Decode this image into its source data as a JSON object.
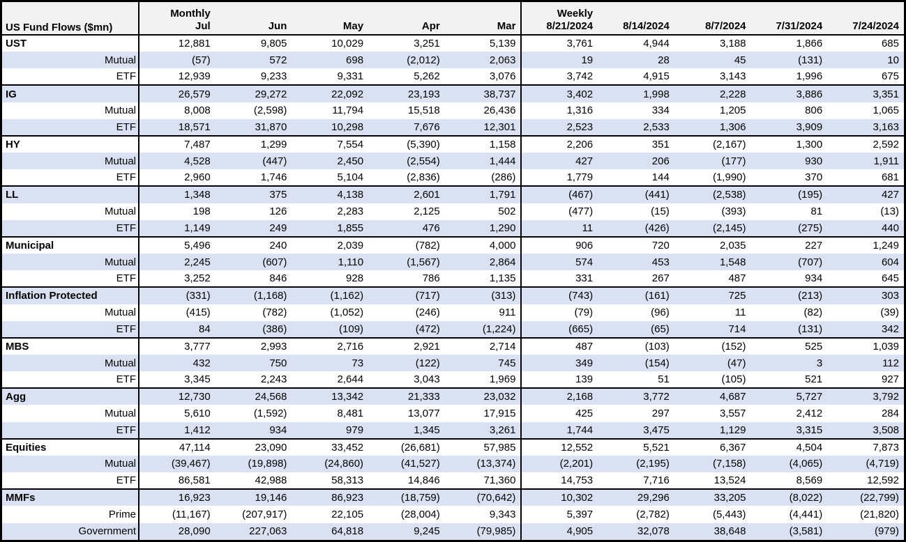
{
  "colors": {
    "stripe": "#d9e1f2",
    "header_bg": "#f2f2f2",
    "border": "#000000",
    "text": "#000000"
  },
  "chart_data": {
    "type": "table",
    "title": "US Fund Flows ($mn)",
    "column_groups": [
      {
        "label": "Monthly",
        "columns": [
          "Jul",
          "Jun",
          "May",
          "Apr",
          "Mar"
        ]
      },
      {
        "label": "Weekly",
        "columns": [
          "8/21/2024",
          "8/14/2024",
          "8/7/2024",
          "7/31/2024",
          "7/24/2024"
        ]
      }
    ],
    "groups": [
      {
        "name": "UST",
        "rows": [
          {
            "label": "UST",
            "monthly": [
              "12,881",
              "9,805",
              "10,029",
              "3,251",
              "5,139"
            ],
            "weekly": [
              "3,761",
              "4,944",
              "3,188",
              "1,866",
              "685"
            ]
          },
          {
            "label": "Mutual",
            "monthly": [
              "(57)",
              "572",
              "698",
              "(2,012)",
              "2,063"
            ],
            "weekly": [
              "19",
              "28",
              "45",
              "(131)",
              "10"
            ]
          },
          {
            "label": "ETF",
            "monthly": [
              "12,939",
              "9,233",
              "9,331",
              "5,262",
              "3,076"
            ],
            "weekly": [
              "3,742",
              "4,915",
              "3,143",
              "1,996",
              "675"
            ]
          }
        ]
      },
      {
        "name": "IG",
        "rows": [
          {
            "label": "IG",
            "monthly": [
              "26,579",
              "29,272",
              "22,092",
              "23,193",
              "38,737"
            ],
            "weekly": [
              "3,402",
              "1,998",
              "2,228",
              "3,886",
              "3,351"
            ]
          },
          {
            "label": "Mutual",
            "monthly": [
              "8,008",
              "(2,598)",
              "11,794",
              "15,518",
              "26,436"
            ],
            "weekly": [
              "1,316",
              "334",
              "1,205",
              "806",
              "1,065"
            ]
          },
          {
            "label": "ETF",
            "monthly": [
              "18,571",
              "31,870",
              "10,298",
              "7,676",
              "12,301"
            ],
            "weekly": [
              "2,523",
              "2,533",
              "1,306",
              "3,909",
              "3,163"
            ]
          }
        ]
      },
      {
        "name": "HY",
        "rows": [
          {
            "label": "HY",
            "monthly": [
              "7,487",
              "1,299",
              "7,554",
              "(5,390)",
              "1,158"
            ],
            "weekly": [
              "2,206",
              "351",
              "(2,167)",
              "1,300",
              "2,592"
            ]
          },
          {
            "label": "Mutual",
            "monthly": [
              "4,528",
              "(447)",
              "2,450",
              "(2,554)",
              "1,444"
            ],
            "weekly": [
              "427",
              "206",
              "(177)",
              "930",
              "1,911"
            ]
          },
          {
            "label": "ETF",
            "monthly": [
              "2,960",
              "1,746",
              "5,104",
              "(2,836)",
              "(286)"
            ],
            "weekly": [
              "1,779",
              "144",
              "(1,990)",
              "370",
              "681"
            ]
          }
        ]
      },
      {
        "name": "LL",
        "rows": [
          {
            "label": "LL",
            "monthly": [
              "1,348",
              "375",
              "4,138",
              "2,601",
              "1,791"
            ],
            "weekly": [
              "(467)",
              "(441)",
              "(2,538)",
              "(195)",
              "427"
            ]
          },
          {
            "label": "Mutual",
            "monthly": [
              "198",
              "126",
              "2,283",
              "2,125",
              "502"
            ],
            "weekly": [
              "(477)",
              "(15)",
              "(393)",
              "81",
              "(13)"
            ]
          },
          {
            "label": "ETF",
            "monthly": [
              "1,149",
              "249",
              "1,855",
              "476",
              "1,290"
            ],
            "weekly": [
              "11",
              "(426)",
              "(2,145)",
              "(275)",
              "440"
            ]
          }
        ]
      },
      {
        "name": "Municipal",
        "rows": [
          {
            "label": "Municipal",
            "monthly": [
              "5,496",
              "240",
              "2,039",
              "(782)",
              "4,000"
            ],
            "weekly": [
              "906",
              "720",
              "2,035",
              "227",
              "1,249"
            ]
          },
          {
            "label": "Mutual",
            "monthly": [
              "2,245",
              "(607)",
              "1,110",
              "(1,567)",
              "2,864"
            ],
            "weekly": [
              "574",
              "453",
              "1,548",
              "(707)",
              "604"
            ]
          },
          {
            "label": "ETF",
            "monthly": [
              "3,252",
              "846",
              "928",
              "786",
              "1,135"
            ],
            "weekly": [
              "331",
              "267",
              "487",
              "934",
              "645"
            ]
          }
        ]
      },
      {
        "name": "Inflation Protected",
        "rows": [
          {
            "label": "Inflation Protected",
            "monthly": [
              "(331)",
              "(1,168)",
              "(1,162)",
              "(717)",
              "(313)"
            ],
            "weekly": [
              "(743)",
              "(161)",
              "725",
              "(213)",
              "303"
            ]
          },
          {
            "label": "Mutual",
            "monthly": [
              "(415)",
              "(782)",
              "(1,052)",
              "(246)",
              "911"
            ],
            "weekly": [
              "(79)",
              "(96)",
              "11",
              "(82)",
              "(39)"
            ]
          },
          {
            "label": "ETF",
            "monthly": [
              "84",
              "(386)",
              "(109)",
              "(472)",
              "(1,224)"
            ],
            "weekly": [
              "(665)",
              "(65)",
              "714",
              "(131)",
              "342"
            ]
          }
        ]
      },
      {
        "name": "MBS",
        "rows": [
          {
            "label": "MBS",
            "monthly": [
              "3,777",
              "2,993",
              "2,716",
              "2,921",
              "2,714"
            ],
            "weekly": [
              "487",
              "(103)",
              "(152)",
              "525",
              "1,039"
            ]
          },
          {
            "label": "Mutual",
            "monthly": [
              "432",
              "750",
              "73",
              "(122)",
              "745"
            ],
            "weekly": [
              "349",
              "(154)",
              "(47)",
              "3",
              "112"
            ]
          },
          {
            "label": "ETF",
            "monthly": [
              "3,345",
              "2,243",
              "2,644",
              "3,043",
              "1,969"
            ],
            "weekly": [
              "139",
              "51",
              "(105)",
              "521",
              "927"
            ]
          }
        ]
      },
      {
        "name": "Agg",
        "rows": [
          {
            "label": "Agg",
            "monthly": [
              "12,730",
              "24,568",
              "13,342",
              "21,333",
              "23,032"
            ],
            "weekly": [
              "2,168",
              "3,772",
              "4,687",
              "5,727",
              "3,792"
            ]
          },
          {
            "label": "Mutual",
            "monthly": [
              "5,610",
              "(1,592)",
              "8,481",
              "13,077",
              "17,915"
            ],
            "weekly": [
              "425",
              "297",
              "3,557",
              "2,412",
              "284"
            ]
          },
          {
            "label": "ETF",
            "monthly": [
              "1,412",
              "934",
              "979",
              "1,345",
              "3,261"
            ],
            "weekly": [
              "1,744",
              "3,475",
              "1,129",
              "3,315",
              "3,508"
            ]
          }
        ]
      },
      {
        "name": "Equities",
        "rows": [
          {
            "label": "Equities",
            "monthly": [
              "47,114",
              "23,090",
              "33,452",
              "(26,681)",
              "57,985"
            ],
            "weekly": [
              "12,552",
              "5,521",
              "6,367",
              "4,504",
              "7,873"
            ]
          },
          {
            "label": "Mutual",
            "monthly": [
              "(39,467)",
              "(19,898)",
              "(24,860)",
              "(41,527)",
              "(13,374)"
            ],
            "weekly": [
              "(2,201)",
              "(2,195)",
              "(7,158)",
              "(4,065)",
              "(4,719)"
            ]
          },
          {
            "label": "ETF",
            "monthly": [
              "86,581",
              "42,988",
              "58,313",
              "14,846",
              "71,360"
            ],
            "weekly": [
              "14,753",
              "7,716",
              "13,524",
              "8,569",
              "12,592"
            ]
          }
        ]
      },
      {
        "name": "MMFs",
        "rows": [
          {
            "label": "MMFs",
            "monthly": [
              "16,923",
              "19,146",
              "86,923",
              "(18,759)",
              "(70,642)"
            ],
            "weekly": [
              "10,302",
              "29,296",
              "33,205",
              "(8,022)",
              "(22,799)"
            ]
          },
          {
            "label": "Prime",
            "monthly": [
              "(11,167)",
              "(207,917)",
              "22,105",
              "(28,004)",
              "9,343"
            ],
            "weekly": [
              "5,397",
              "(2,782)",
              "(5,443)",
              "(4,441)",
              "(21,820)"
            ]
          },
          {
            "label": "Government",
            "monthly": [
              "28,090",
              "227,063",
              "64,818",
              "9,245",
              "(79,985)"
            ],
            "weekly": [
              "4,905",
              "32,078",
              "38,648",
              "(3,581)",
              "(979)"
            ]
          }
        ]
      }
    ]
  }
}
